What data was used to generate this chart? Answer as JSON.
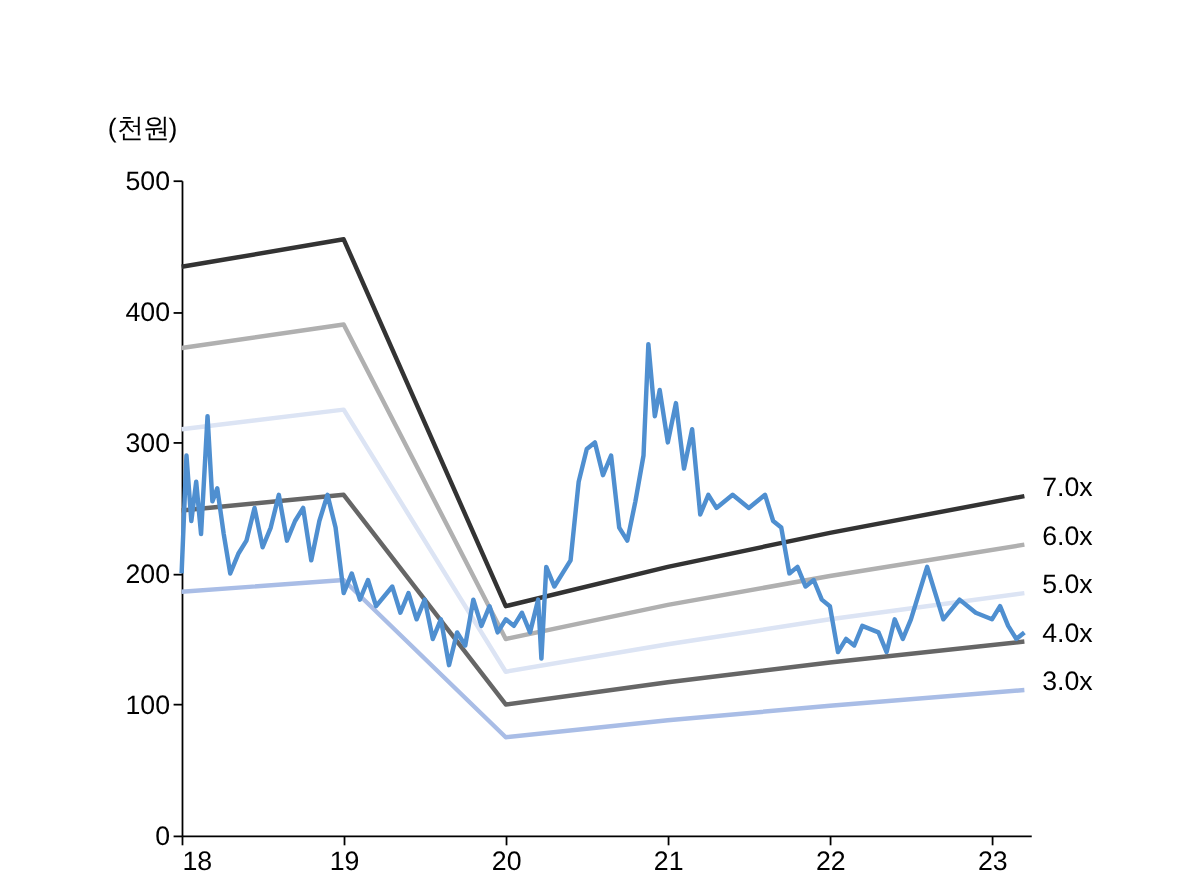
{
  "chart_data": {
    "type": "line",
    "ylabel": "(천원)",
    "xlim": [
      18,
      23.24
    ],
    "xticks": [
      18,
      19,
      20,
      21,
      22,
      23
    ],
    "ylim": [
      0,
      500
    ],
    "yticks": [
      0,
      100,
      200,
      300,
      400,
      500
    ],
    "grid": false,
    "series": [
      {
        "name": "7.0x",
        "color": "#333333",
        "x": [
          18,
          19,
          20,
          21,
          22,
          23.2
        ],
        "values": [
          434,
          455,
          175,
          205,
          231,
          259
        ]
      },
      {
        "name": "6.0x",
        "color": "#b0b0b0",
        "x": [
          18,
          19,
          20,
          21,
          22,
          23.2
        ],
        "values": [
          372,
          390,
          150,
          176,
          198,
          222
        ]
      },
      {
        "name": "5.0x",
        "color": "#dce4f4",
        "x": [
          18,
          19,
          20,
          21,
          22,
          23.2
        ],
        "values": [
          310,
          325,
          125,
          146,
          165,
          185
        ]
      },
      {
        "name": "4.0x",
        "color": "#666666",
        "x": [
          18,
          19,
          20,
          21,
          22,
          23.2
        ],
        "values": [
          248,
          260,
          100,
          117,
          132,
          148
        ]
      },
      {
        "name": "3.0x",
        "color": "#a9bde6",
        "x": [
          18,
          19,
          20,
          21,
          22,
          23.2
        ],
        "values": [
          186,
          195,
          75,
          88,
          99,
          111
        ]
      },
      {
        "color": "#4f8fd0",
        "x": [
          18.0,
          18.03,
          18.06,
          18.09,
          18.12,
          18.16,
          18.19,
          18.22,
          18.26,
          18.3,
          18.35,
          18.4,
          18.45,
          18.5,
          18.55,
          18.6,
          18.65,
          18.7,
          18.75,
          18.8,
          18.85,
          18.9,
          18.95,
          19.0,
          19.05,
          19.1,
          19.15,
          19.2,
          19.3,
          19.35,
          19.4,
          19.45,
          19.5,
          19.55,
          19.6,
          19.65,
          19.7,
          19.75,
          19.8,
          19.85,
          19.9,
          19.95,
          20.0,
          20.05,
          20.1,
          20.15,
          20.2,
          20.22,
          20.25,
          20.3,
          20.35,
          20.4,
          20.45,
          20.5,
          20.55,
          20.6,
          20.65,
          20.7,
          20.75,
          20.8,
          20.85,
          20.88,
          20.92,
          20.95,
          21.0,
          21.05,
          21.1,
          21.15,
          21.2,
          21.25,
          21.3,
          21.4,
          21.5,
          21.6,
          21.65,
          21.7,
          21.75,
          21.8,
          21.85,
          21.9,
          21.95,
          22.0,
          22.05,
          22.1,
          22.15,
          22.2,
          22.3,
          22.35,
          22.4,
          22.45,
          22.5,
          22.6,
          22.65,
          22.7,
          22.8,
          22.9,
          23.0,
          23.05,
          23.1,
          23.15,
          23.2
        ],
        "values": [
          200,
          290,
          240,
          270,
          230,
          320,
          255,
          265,
          230,
          200,
          215,
          225,
          250,
          220,
          235,
          260,
          225,
          240,
          250,
          210,
          240,
          260,
          235,
          185,
          200,
          180,
          195,
          175,
          190,
          170,
          185,
          165,
          180,
          150,
          165,
          130,
          155,
          145,
          180,
          160,
          175,
          155,
          165,
          160,
          170,
          155,
          180,
          135,
          205,
          190,
          200,
          210,
          270,
          295,
          300,
          275,
          290,
          235,
          225,
          255,
          290,
          375,
          320,
          340,
          300,
          330,
          280,
          310,
          245,
          260,
          250,
          260,
          250,
          260,
          240,
          235,
          200,
          205,
          190,
          195,
          180,
          175,
          140,
          150,
          145,
          160,
          155,
          140,
          165,
          150,
          165,
          205,
          185,
          165,
          180,
          170,
          165,
          175,
          160,
          150,
          155
        ]
      }
    ]
  }
}
